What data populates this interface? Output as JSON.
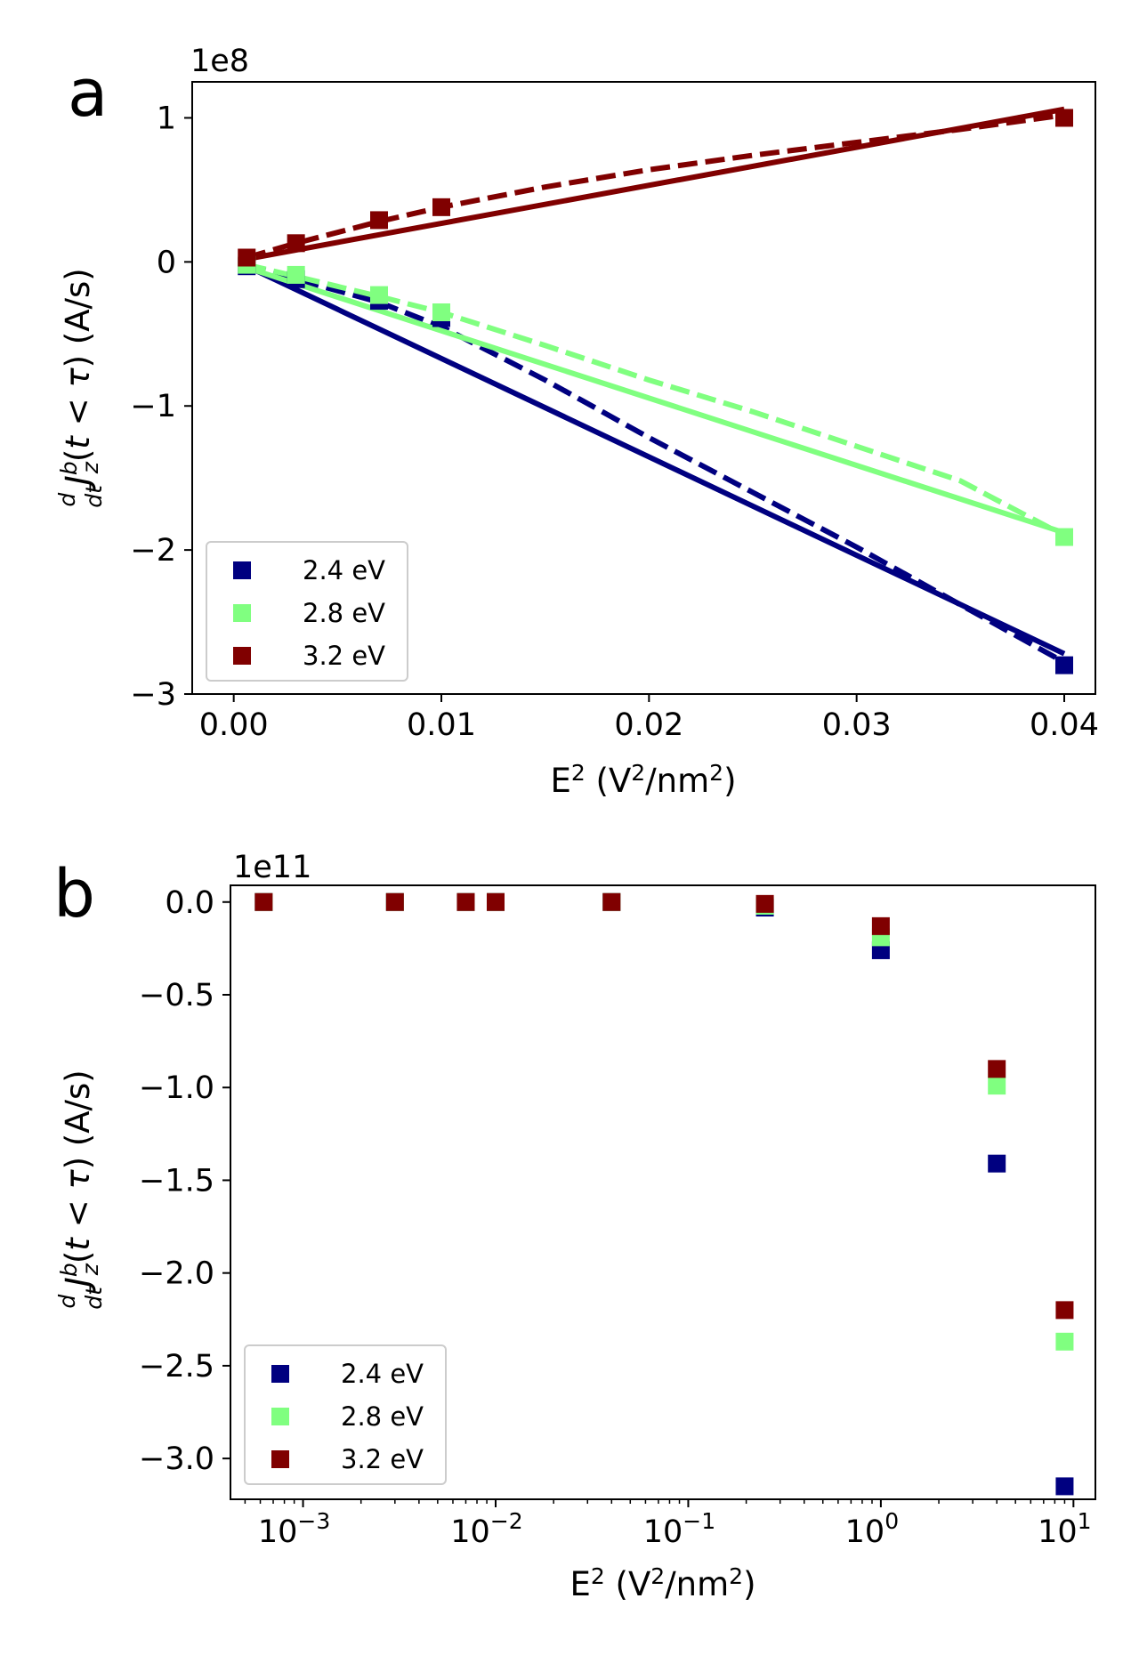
{
  "chart_data": [
    {
      "type": "line",
      "panel_label": "a",
      "offset_label": "1e8",
      "ylabel": "(d/dt) J_z^b (t < τ) (A/s)",
      "xlabel": "E² (V²/nm²)",
      "xscale": "linear",
      "xlim": [
        -0.002,
        0.0415
      ],
      "ylim": [
        -3.0,
        1.25
      ],
      "x_ticks": [
        {
          "v": 0.0,
          "label": "0.00"
        },
        {
          "v": 0.01,
          "label": "0.01"
        },
        {
          "v": 0.02,
          "label": "0.02"
        },
        {
          "v": 0.03,
          "label": "0.03"
        },
        {
          "v": 0.04,
          "label": "0.04"
        }
      ],
      "y_ticks": [
        {
          "v": 1,
          "label": "1"
        },
        {
          "v": 0,
          "label": "0"
        },
        {
          "v": -1,
          "label": "−1"
        },
        {
          "v": -2,
          "label": "−2"
        },
        {
          "v": -3,
          "label": "−3"
        }
      ],
      "legend_position": "lower-left",
      "series": [
        {
          "name": "2.4 eV",
          "color": "#000080",
          "points": [
            [
              0.000625,
              -0.03
            ],
            [
              0.003,
              -0.12
            ],
            [
              0.007,
              -0.27
            ],
            [
              0.01,
              -0.39
            ],
            [
              0.04,
              -2.8
            ]
          ],
          "fit_linear": [
            [
              0.000625,
              -0.03
            ],
            [
              0.04,
              -2.72
            ]
          ],
          "fit_dashed": [
            [
              0.000625,
              -0.02
            ],
            [
              0.003,
              -0.12
            ],
            [
              0.007,
              -0.28
            ],
            [
              0.01,
              -0.45
            ],
            [
              0.015,
              -0.82
            ],
            [
              0.02,
              -1.22
            ],
            [
              0.025,
              -1.6
            ],
            [
              0.03,
              -1.98
            ],
            [
              0.035,
              -2.38
            ],
            [
              0.04,
              -2.78
            ]
          ]
        },
        {
          "name": "2.8 eV",
          "color": "#80ff80",
          "points": [
            [
              0.000625,
              -0.02
            ],
            [
              0.003,
              -0.09
            ],
            [
              0.007,
              -0.23
            ],
            [
              0.01,
              -0.35
            ],
            [
              0.04,
              -1.91
            ]
          ],
          "fit_linear": [
            [
              0.000625,
              -0.04
            ],
            [
              0.04,
              -1.88
            ]
          ],
          "fit_dashed": [
            [
              0.000625,
              -0.02
            ],
            [
              0.003,
              -0.1
            ],
            [
              0.007,
              -0.24
            ],
            [
              0.01,
              -0.35
            ],
            [
              0.015,
              -0.58
            ],
            [
              0.02,
              -0.82
            ],
            [
              0.025,
              -1.04
            ],
            [
              0.03,
              -1.28
            ],
            [
              0.035,
              -1.52
            ],
            [
              0.04,
              -1.9
            ]
          ]
        },
        {
          "name": "3.2 eV",
          "color": "#800000",
          "points": [
            [
              0.000625,
              0.03
            ],
            [
              0.003,
              0.13
            ],
            [
              0.007,
              0.29
            ],
            [
              0.01,
              0.38
            ],
            [
              0.04,
              1.0
            ]
          ],
          "fit_linear": [
            [
              0.000625,
              0.02
            ],
            [
              0.04,
              1.06
            ]
          ],
          "fit_dashed": [
            [
              0.000625,
              0.03
            ],
            [
              0.003,
              0.13
            ],
            [
              0.007,
              0.28
            ],
            [
              0.01,
              0.38
            ],
            [
              0.015,
              0.52
            ],
            [
              0.02,
              0.64
            ],
            [
              0.025,
              0.74
            ],
            [
              0.03,
              0.83
            ],
            [
              0.035,
              0.92
            ],
            [
              0.04,
              1.02
            ]
          ]
        }
      ]
    },
    {
      "type": "scatter",
      "panel_label": "b",
      "offset_label": "1e11",
      "ylabel": "(d/dt) J_z^b (t < τ) (A/s)",
      "xlabel": "E² (V²/nm²)",
      "xscale": "log",
      "xlim": [
        0.00042,
        13
      ],
      "ylim": [
        -3.22,
        0.09
      ],
      "x_ticks": [
        {
          "v": 0.001,
          "base": "10",
          "exp": "−3"
        },
        {
          "v": 0.01,
          "base": "10",
          "exp": "−2"
        },
        {
          "v": 0.1,
          "base": "10",
          "exp": "−1"
        },
        {
          "v": 1,
          "base": "10",
          "exp": "0"
        },
        {
          "v": 10,
          "base": "10",
          "exp": "1"
        }
      ],
      "y_ticks": [
        {
          "v": 0.0,
          "label": "0.0"
        },
        {
          "v": -0.5,
          "label": "−0.5"
        },
        {
          "v": -1.0,
          "label": "−1.0"
        },
        {
          "v": -1.5,
          "label": "−1.5"
        },
        {
          "v": -2.0,
          "label": "−2.0"
        },
        {
          "v": -2.5,
          "label": "−2.5"
        },
        {
          "v": -3.0,
          "label": "−3.0"
        }
      ],
      "legend_position": "lower-left",
      "series": [
        {
          "name": "2.4 eV",
          "color": "#000080",
          "points": [
            [
              0.000625,
              0.0
            ],
            [
              0.003,
              0.0
            ],
            [
              0.007,
              0.0
            ],
            [
              0.01,
              0.0
            ],
            [
              0.04,
              0.0
            ],
            [
              0.25,
              -0.03
            ],
            [
              1.0,
              -0.26
            ],
            [
              4.0,
              -1.41
            ],
            [
              9.0,
              -3.15
            ]
          ]
        },
        {
          "name": "2.8 eV",
          "color": "#80ff80",
          "points": [
            [
              0.000625,
              0.0
            ],
            [
              0.003,
              0.0
            ],
            [
              0.007,
              0.0
            ],
            [
              0.01,
              0.0
            ],
            [
              0.04,
              0.0
            ],
            [
              0.25,
              -0.02
            ],
            [
              1.0,
              -0.19
            ],
            [
              4.0,
              -0.99
            ],
            [
              9.0,
              -2.37
            ]
          ]
        },
        {
          "name": "3.2 eV",
          "color": "#800000",
          "points": [
            [
              0.000625,
              0.0
            ],
            [
              0.003,
              0.0
            ],
            [
              0.007,
              0.0
            ],
            [
              0.01,
              0.0
            ],
            [
              0.04,
              0.0
            ],
            [
              0.25,
              -0.01
            ],
            [
              1.0,
              -0.13
            ],
            [
              4.0,
              -0.9
            ],
            [
              9.0,
              -2.2
            ]
          ]
        }
      ]
    }
  ]
}
